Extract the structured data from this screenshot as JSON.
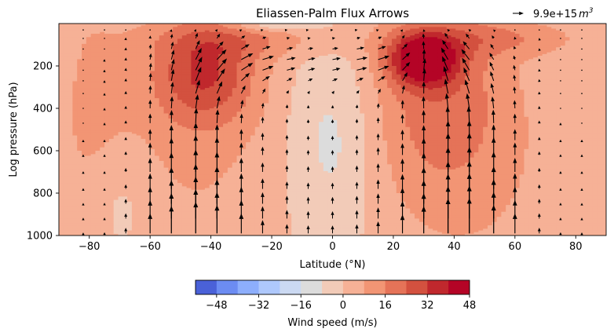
{
  "chart_data": {
    "type": "contourf+quiver",
    "title": "Eliassen-Palm Flux Arrows",
    "xlabel": "Latitude ($^\\circ$N)",
    "xlabel_display": "Latitude (°N)",
    "ylabel": "Log pressure (hPa)",
    "xlim": [
      -90,
      90
    ],
    "ylim": [
      1000,
      0
    ],
    "x_ticks": [
      -80,
      -60,
      -40,
      -20,
      0,
      20,
      40,
      60,
      80
    ],
    "x_tick_labels": [
      "−80",
      "−60",
      "−40",
      "−20",
      "0",
      "20",
      "40",
      "60",
      "80"
    ],
    "y_ticks": [
      200,
      400,
      600,
      800,
      1000
    ],
    "y_tick_labels": [
      "200",
      "400",
      "600",
      "800",
      "1000"
    ],
    "quiver_key": {
      "label": "9.9e+15",
      "unit": "m",
      "unit_power": "3"
    },
    "colorbar": {
      "label": "Wind speed (m/s)",
      "levels": [
        -56,
        -48,
        -40,
        -32,
        -24,
        -16,
        -8,
        0,
        8,
        16,
        24,
        32,
        40,
        48
      ],
      "tick_values": [
        -48,
        -32,
        -16,
        0,
        16,
        32,
        48
      ],
      "tick_labels": [
        "−48",
        "−32",
        "−16",
        "0",
        "16",
        "32",
        "48"
      ],
      "colors": [
        "#4a61d8",
        "#6c8cf2",
        "#8daefc",
        "#aec8fc",
        "#cbd9f2",
        "#dcdcdc",
        "#f2cbb8",
        "#f6b196",
        "#f29574",
        "#e57358",
        "#d3513f",
        "#c0282d",
        "#b40426"
      ]
    },
    "wind_field": {
      "description": "zonal-mean zonal wind contours",
      "jets": [
        {
          "lat": -42,
          "pressure": 230,
          "peak": 27
        },
        {
          "lat": 30,
          "pressure": 170,
          "peak": 45
        }
      ],
      "easterly_top_lat": -20
    },
    "arrows": {
      "lats": [
        -82,
        -75,
        -68,
        -60,
        -53,
        -45,
        -38,
        -30,
        -23,
        -15,
        -8,
        0,
        8,
        15,
        23,
        30,
        38,
        45,
        53,
        60,
        68,
        75,
        82
      ],
      "pressures": [
        30,
        70,
        120,
        170,
        220,
        270,
        330,
        400,
        470,
        550,
        620,
        700,
        780,
        850,
        920,
        990
      ]
    }
  }
}
